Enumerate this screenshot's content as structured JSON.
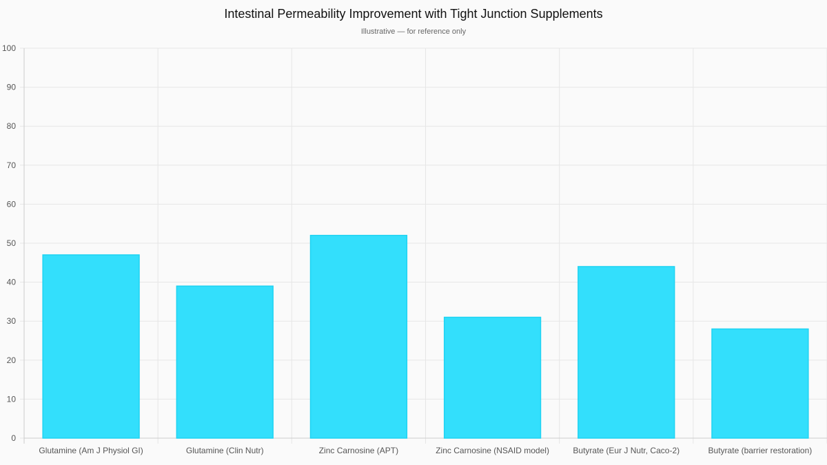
{
  "chart_data": {
    "type": "bar",
    "title": "Intestinal Permeability Improvement with Tight Junction Supplements",
    "subtitle": "Illustrative — for reference only",
    "categories": [
      "Glutamine (Am J Physiol GI)",
      "Glutamine (Clin Nutr)",
      "Zinc Carnosine (APT)",
      "Zinc Carnosine (NSAID model)",
      "Butyrate (Eur J Nutr, Caco-2)",
      "Butyrate (barrier restoration)"
    ],
    "values": [
      47,
      39,
      52,
      31,
      44,
      28
    ],
    "xlabel": "",
    "ylabel": "",
    "ylim": [
      0,
      100
    ],
    "yticks": [
      0,
      10,
      20,
      30,
      40,
      50,
      60,
      70,
      80,
      90,
      100
    ],
    "grid": true,
    "legend": "none",
    "colors": {
      "bar_fill": "#33dffc",
      "bar_border": "#1ed3f2",
      "grid": "#e6e6e6"
    }
  }
}
